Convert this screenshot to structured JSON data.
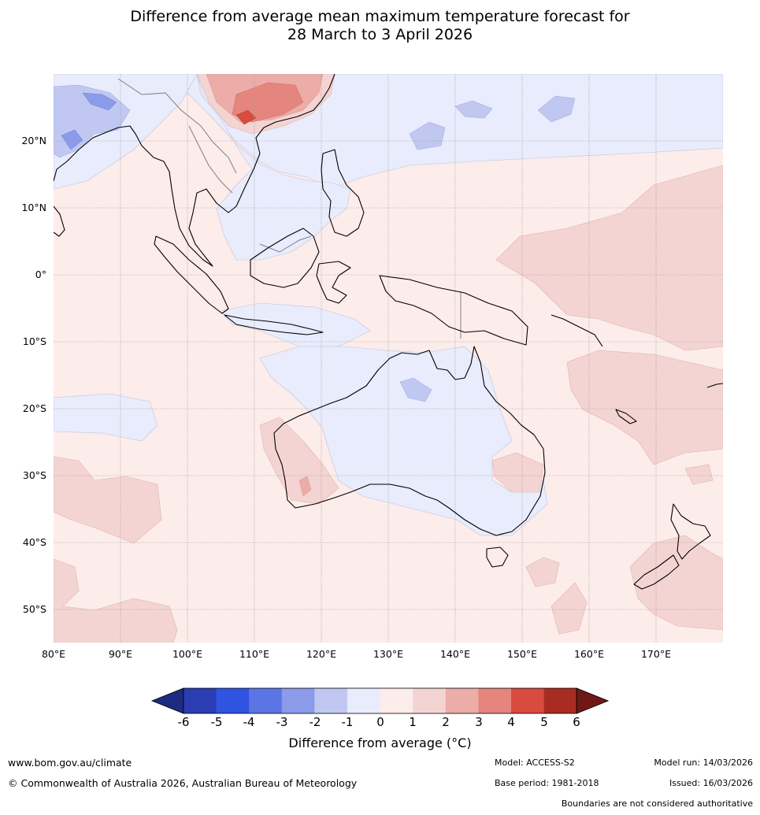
{
  "title": {
    "line1": "Difference from average mean maximum temperature forecast for",
    "line2": "28 March to 3 April 2026"
  },
  "axes": {
    "lat_labels": [
      "20°N",
      "10°N",
      "0°",
      "10°S",
      "20°S",
      "30°S",
      "40°S",
      "50°S"
    ],
    "lon_labels": [
      "80°E",
      "90°E",
      "100°E",
      "110°E",
      "120°E",
      "130°E",
      "140°E",
      "150°E",
      "160°E",
      "170°E"
    ]
  },
  "colorbar": {
    "ticks": [
      "-6",
      "-5",
      "-4",
      "-3",
      "-2",
      "-1",
      "0",
      "1",
      "2",
      "3",
      "4",
      "5",
      "6"
    ],
    "colors": [
      "#1d2b80",
      "#2a3db2",
      "#3053e2",
      "#5c75e4",
      "#8b9be9",
      "#c0c8f2",
      "#e8ecfc",
      "#fcecea",
      "#f4d4d2",
      "#ecaca8",
      "#e4867e",
      "#d84c40",
      "#a82c22",
      "#701818"
    ],
    "label": "Difference from average (°C)"
  },
  "colors": {
    "gridline": "#999999",
    "coast": "#000000",
    "border": "#808080"
  },
  "footer": {
    "website": "www.bom.gov.au/climate",
    "copyright": "© Commonwealth of Australia 2026, Australian Bureau of Meteorology",
    "model": "Model: ACCESS-S2",
    "base_period": "Base period: 1981-2018",
    "model_run": "Model run: 14/03/2026",
    "issued": "Issued: 16/03/2026",
    "disclaimer": "Boundaries are not considered authoritative"
  }
}
